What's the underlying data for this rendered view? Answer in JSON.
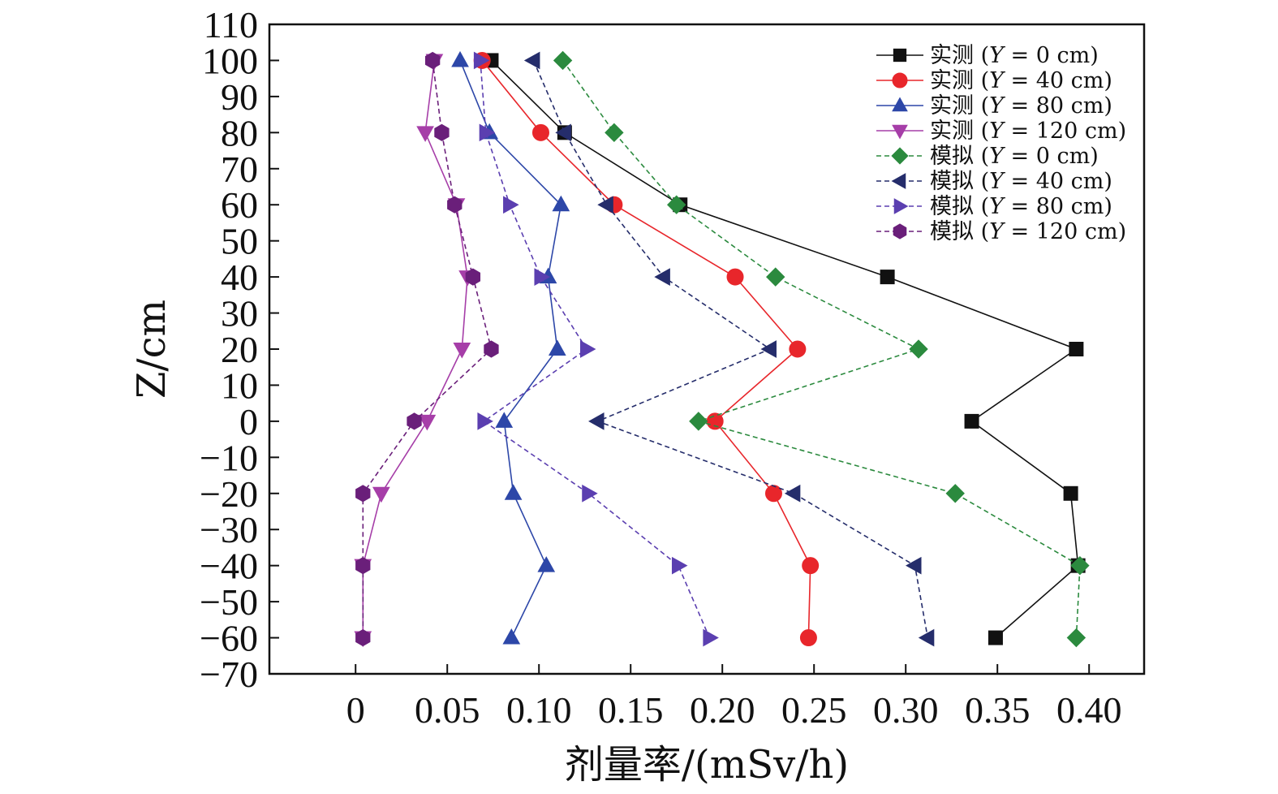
{
  "chart_data": {
    "type": "line",
    "title": "",
    "xlabel": "剂量率/(mSv/h)",
    "ylabel": "Z/cm",
    "xlim": [
      -0.047,
      0.43
    ],
    "ylim": [
      -70,
      110
    ],
    "xticks": [
      0,
      0.05,
      0.1,
      0.15,
      0.2,
      0.25,
      0.3,
      0.35,
      0.4
    ],
    "xtick_labels": [
      "0",
      "0.05",
      "0.10",
      "0.15",
      "0.20",
      "0.25",
      "0.30",
      "0.35",
      "0.40"
    ],
    "yticks": [
      -70,
      -60,
      -50,
      -40,
      -30,
      -20,
      -10,
      0,
      10,
      20,
      30,
      40,
      50,
      60,
      70,
      80,
      90,
      100,
      110
    ],
    "ytick_labels": [
      "−70",
      "−60",
      "−50",
      "−40",
      "−30",
      "−20",
      "−10",
      "0",
      "10",
      "20",
      "30",
      "40",
      "50",
      "60",
      "70",
      "80",
      "90",
      "100",
      "110"
    ],
    "grid": false,
    "legend_position": "top-right",
    "series": [
      {
        "name": "实测 (Y = 0 cm)",
        "label_prefix": "实测 (",
        "label_var": "Y",
        "label_suffix": " = 0 cm)",
        "color": "#111111",
        "marker": "square",
        "dash": "solid",
        "points": [
          [
            0.074,
            100
          ],
          [
            0.114,
            80
          ],
          [
            0.177,
            60
          ],
          [
            0.29,
            40
          ],
          [
            0.393,
            20
          ],
          [
            0.336,
            0
          ],
          [
            0.39,
            -20
          ],
          [
            0.394,
            -40
          ],
          [
            0.349,
            -60
          ]
        ]
      },
      {
        "name": "实测 (Y = 40 cm)",
        "label_prefix": "实测 (",
        "label_var": "Y",
        "label_suffix": " = 40 cm)",
        "color": "#e8262b",
        "marker": "circle",
        "dash": "solid",
        "points": [
          [
            0.069,
            100
          ],
          [
            0.101,
            80
          ],
          [
            0.141,
            60
          ],
          [
            0.207,
            40
          ],
          [
            0.241,
            20
          ],
          [
            0.196,
            0
          ],
          [
            0.228,
            -20
          ],
          [
            0.248,
            -40
          ],
          [
            0.247,
            -60
          ]
        ]
      },
      {
        "name": "实测 (Y = 80 cm)",
        "label_prefix": "实测 (",
        "label_var": "Y",
        "label_suffix": " = 80 cm)",
        "color": "#2d47a8",
        "marker": "triangle-up",
        "dash": "solid",
        "points": [
          [
            0.057,
            100
          ],
          [
            0.073,
            80
          ],
          [
            0.112,
            60
          ],
          [
            0.105,
            40
          ],
          [
            0.11,
            20
          ],
          [
            0.081,
            0
          ],
          [
            0.086,
            -20
          ],
          [
            0.104,
            -40
          ],
          [
            0.085,
            -60
          ]
        ]
      },
      {
        "name": "实测 (Y = 120 cm)",
        "label_prefix": "实测 (",
        "label_var": "Y",
        "label_suffix": " = 120 cm)",
        "color": "#a63ea8",
        "marker": "triangle-down",
        "dash": "solid",
        "points": [
          [
            0.043,
            100
          ],
          [
            0.038,
            80
          ],
          [
            0.055,
            60
          ],
          [
            0.061,
            40
          ],
          [
            0.058,
            20
          ],
          [
            0.039,
            0
          ],
          [
            0.014,
            -20
          ],
          [
            0.004,
            -40
          ],
          [
            0.004,
            -60
          ]
        ]
      },
      {
        "name": "模拟 (Y = 0 cm)",
        "label_prefix": "模拟 (",
        "label_var": "Y",
        "label_suffix": " = 0 cm)",
        "color": "#2b8a3e",
        "marker": "diamond",
        "dash": "dashed",
        "points": [
          [
            0.113,
            100
          ],
          [
            0.141,
            80
          ],
          [
            0.175,
            60
          ],
          [
            0.229,
            40
          ],
          [
            0.307,
            20
          ],
          [
            0.187,
            0
          ],
          [
            0.327,
            -20
          ],
          [
            0.395,
            -40
          ],
          [
            0.393,
            -60
          ]
        ]
      },
      {
        "name": "模拟 (Y = 40 cm)",
        "label_prefix": "模拟 (",
        "label_var": "Y",
        "label_suffix": " = 40 cm)",
        "color": "#252d6b",
        "marker": "triangle-left",
        "dash": "dashed",
        "points": [
          [
            0.097,
            100
          ],
          [
            0.114,
            80
          ],
          [
            0.137,
            60
          ],
          [
            0.168,
            40
          ],
          [
            0.226,
            20
          ],
          [
            0.132,
            0
          ],
          [
            0.239,
            -20
          ],
          [
            0.305,
            -40
          ],
          [
            0.312,
            -60
          ]
        ]
      },
      {
        "name": "模拟 (Y = 80 cm)",
        "label_prefix": "模拟 (",
        "label_var": "Y",
        "label_suffix": " = 80 cm)",
        "color": "#5b3fb0",
        "marker": "triangle-right",
        "dash": "dashed",
        "points": [
          [
            0.068,
            100
          ],
          [
            0.071,
            80
          ],
          [
            0.084,
            60
          ],
          [
            0.101,
            40
          ],
          [
            0.126,
            20
          ],
          [
            0.07,
            0
          ],
          [
            0.127,
            -20
          ],
          [
            0.176,
            -40
          ],
          [
            0.193,
            -60
          ]
        ]
      },
      {
        "name": "模拟 (Y = 120 cm)",
        "label_prefix": "模拟 (",
        "label_var": "Y",
        "label_suffix": " = 120 cm)",
        "color": "#6a1f7a",
        "marker": "hexagon",
        "dash": "dashed",
        "points": [
          [
            0.042,
            100
          ],
          [
            0.047,
            80
          ],
          [
            0.054,
            60
          ],
          [
            0.064,
            40
          ],
          [
            0.074,
            20
          ],
          [
            0.032,
            0
          ],
          [
            0.004,
            -20
          ],
          [
            0.004,
            -40
          ],
          [
            0.004,
            -60
          ]
        ]
      }
    ]
  }
}
